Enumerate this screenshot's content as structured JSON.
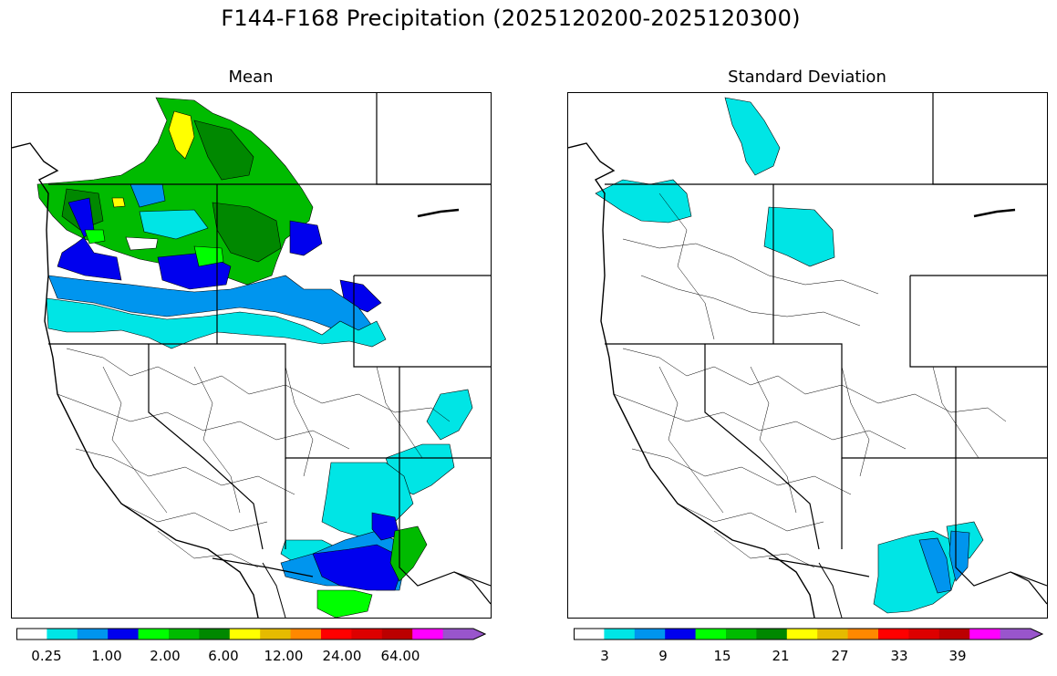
{
  "title": "F144-F168 Precipitation (2025120200-2025120300)",
  "panels": [
    {
      "title": "Mean"
    },
    {
      "title": "Standard Deviation"
    }
  ],
  "colorbars": {
    "palette": [
      "#ffffff",
      "#00e5e5",
      "#0095ee",
      "#0000ee",
      "#00ff00",
      "#00bb00",
      "#008800",
      "#ffff00",
      "#e5bb00",
      "#ff8800",
      "#ff0000",
      "#dd0000",
      "#bb0000",
      "#ff00ff",
      "#9955cc"
    ],
    "mean_ticks": [
      "0.25",
      "1.00",
      "2.00",
      "6.00",
      "12.00",
      "24.00",
      "64.00"
    ],
    "std_ticks": [
      "3",
      "9",
      "15",
      "21",
      "27",
      "33",
      "39"
    ]
  },
  "map_regions": {
    "mean": [
      {
        "name": "yukon-upper-yellow",
        "color": "#ffff00"
      },
      {
        "name": "washington-dark-green",
        "color": "#008800"
      },
      {
        "name": "coast-blue",
        "color": "#0000ee"
      },
      {
        "name": "oregon-cyan",
        "color": "#00e5e5"
      },
      {
        "name": "arizona-blue",
        "color": "#0000ee"
      },
      {
        "name": "mexico-green",
        "color": "#00ff00"
      }
    ],
    "std": [
      {
        "name": "yukon-cyan",
        "color": "#00e5e5"
      },
      {
        "name": "washington-cyan",
        "color": "#00e5e5"
      },
      {
        "name": "arizona-cyan",
        "color": "#00e5e5"
      },
      {
        "name": "arizona-blue",
        "color": "#0095ee"
      }
    ]
  }
}
